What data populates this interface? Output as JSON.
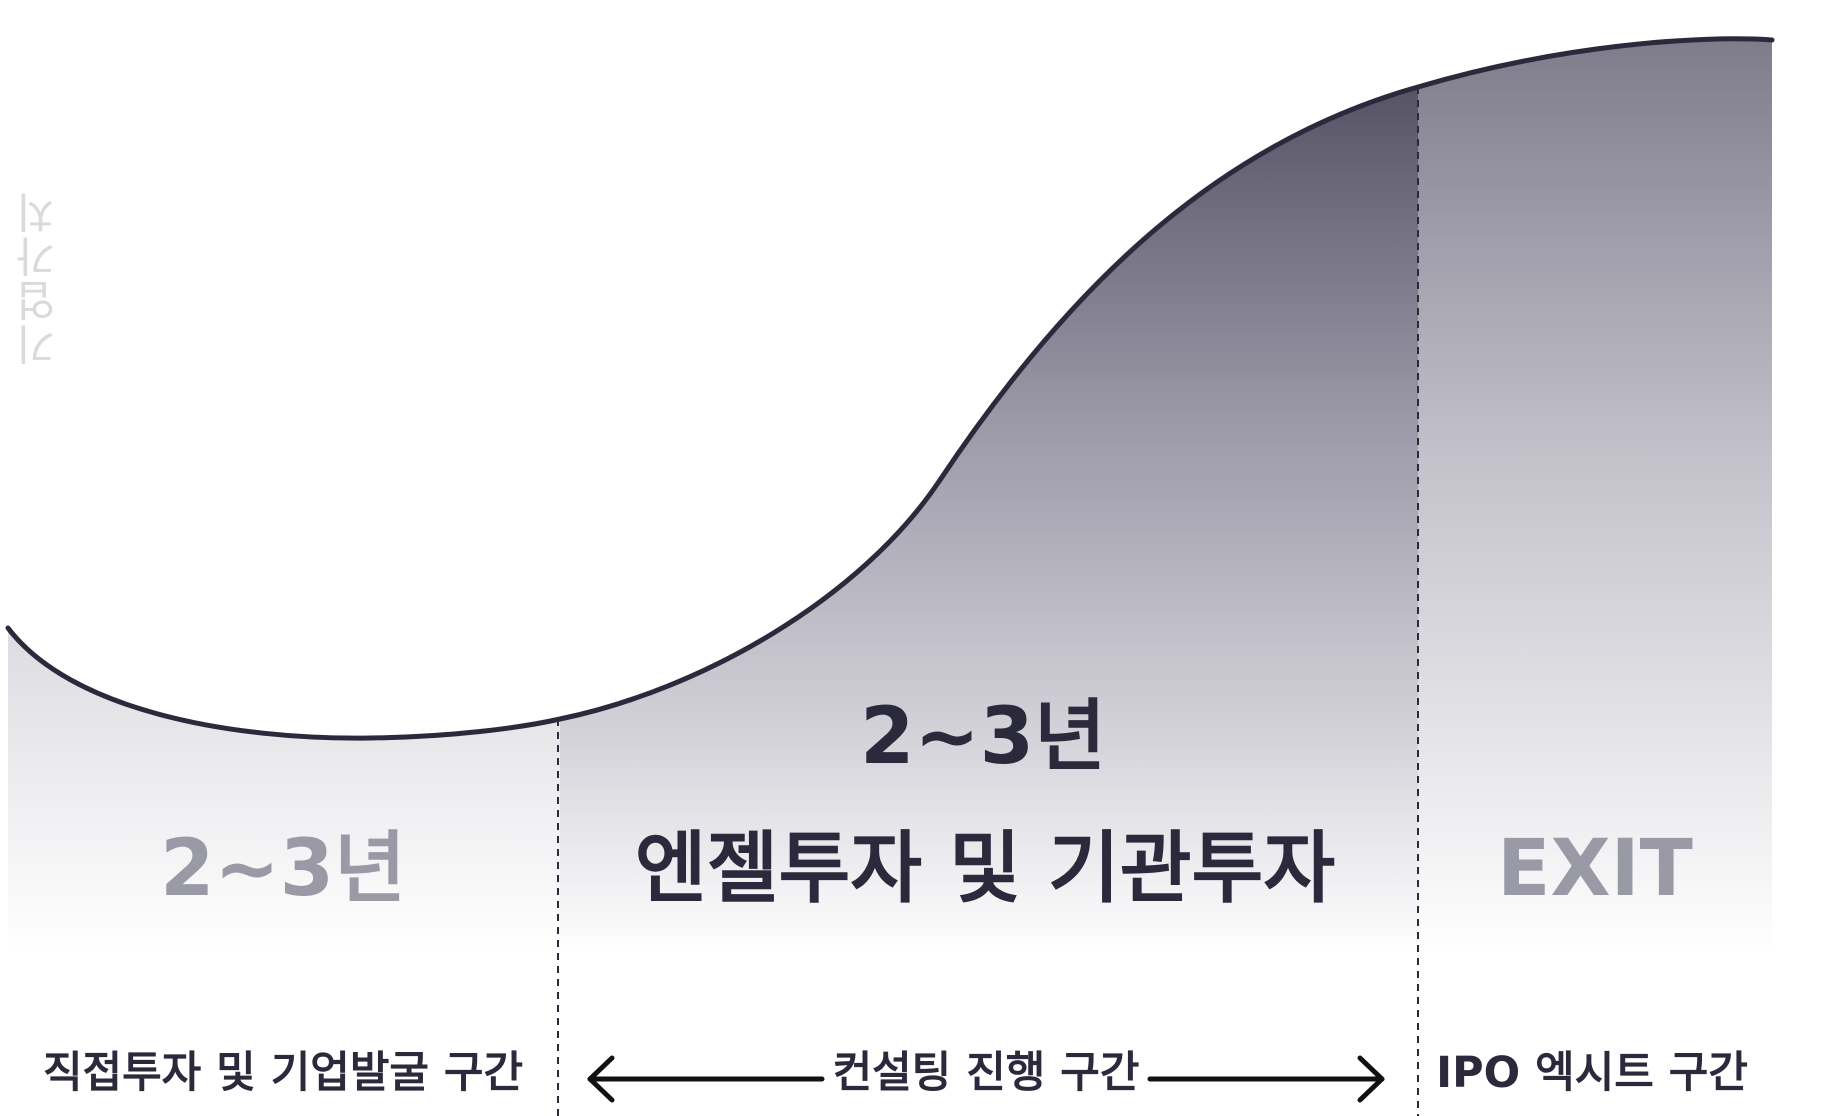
{
  "axis_label": "기업가치",
  "phases": [
    {
      "duration": "2~3년",
      "title": "",
      "caption": "직접투자 및 기업발굴 구간"
    },
    {
      "duration": "2~3년",
      "title": "엔젤투자 및 기관투자",
      "caption": "컨설팅 진행 구간"
    },
    {
      "duration": "",
      "title": "EXIT",
      "caption": "IPO 엑시트 구간"
    }
  ],
  "colors": {
    "curve": "#2b2a3c",
    "fill_dark": "#565366",
    "text_dark": "#2b2a3c",
    "text_faded": "#9a99a6",
    "axis_label": "#d9d9de"
  }
}
